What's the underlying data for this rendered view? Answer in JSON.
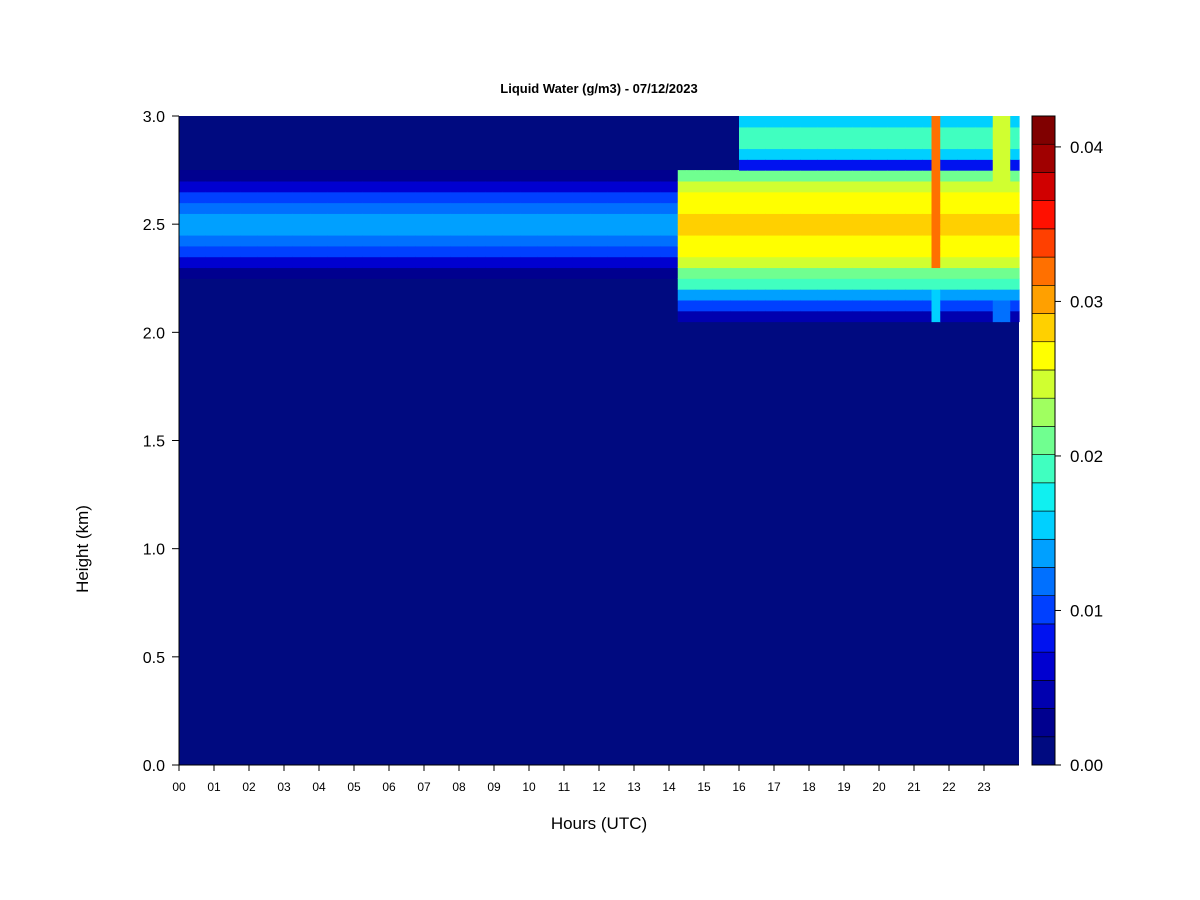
{
  "chart_data": {
    "type": "heatmap",
    "title": "Liquid Water (g/m3) - 07/12/2023",
    "xlabel": "Hours (UTC)",
    "ylabel": "Height (km)",
    "xlim": [
      0,
      24
    ],
    "ylim": [
      0,
      3.0
    ],
    "x_ticks": [
      "00",
      "01",
      "02",
      "03",
      "04",
      "05",
      "06",
      "07",
      "08",
      "09",
      "10",
      "11",
      "12",
      "13",
      "14",
      "15",
      "16",
      "17",
      "18",
      "19",
      "20",
      "21",
      "22",
      "23"
    ],
    "y_ticks": [
      "0.0",
      "0.5",
      "1.0",
      "1.5",
      "2.0",
      "2.5",
      "3.0"
    ],
    "colorbar": {
      "min": 0.0,
      "max": 0.042,
      "ticks": [
        "0.00",
        "0.01",
        "0.02",
        "0.03",
        "0.04"
      ],
      "colors": [
        "#000a80",
        "#00008f",
        "#0000af",
        "#0000d0",
        "#0012f0",
        "#0040ff",
        "#0070ff",
        "#00a0ff",
        "#00d0ff",
        "#10f0f0",
        "#40ffc0",
        "#70ff90",
        "#a0ff60",
        "#d0ff30",
        "#ffff00",
        "#ffd000",
        "#ffa000",
        "#ff7000",
        "#ff4000",
        "#ff1000",
        "#d00000",
        "#a00000",
        "#800000"
      ]
    },
    "background_value": 0.0,
    "cloud_layers": [
      {
        "hours": [
          0,
          14.3
        ],
        "base_km": 2.27,
        "top_km": 2.73,
        "center_km": 2.5,
        "peak": 0.012
      },
      {
        "hours": [
          14.3,
          24
        ],
        "base_km": 2.05,
        "top_km": 2.75,
        "center_km": 2.5,
        "peak": 0.026
      },
      {
        "hours": [
          16,
          24
        ],
        "base_km": 2.75,
        "top_km": 3.0,
        "center_km": 2.9,
        "peak": 0.018
      }
    ],
    "spikes": [
      {
        "hour": 21.6,
        "peak": 0.032
      },
      {
        "hour": 23.5,
        "peak": 0.024
      }
    ]
  }
}
